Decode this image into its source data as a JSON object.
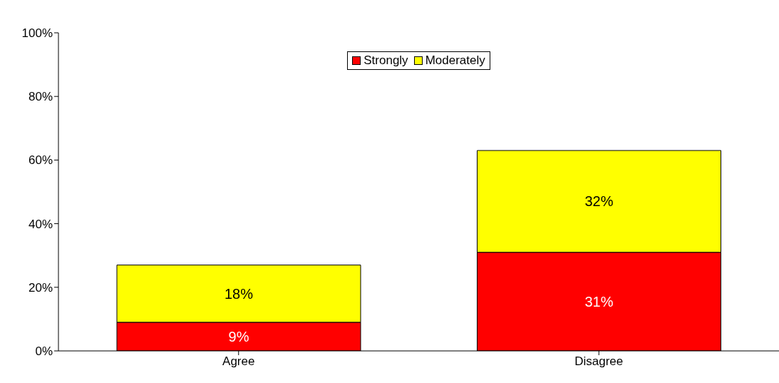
{
  "chart_data": {
    "type": "bar",
    "stacked": true,
    "categories": [
      "Agree",
      "Disagree"
    ],
    "series": [
      {
        "name": "Strongly",
        "color": "#ff0000",
        "values": [
          9,
          31
        ],
        "value_labels": [
          "9%",
          "31%"
        ]
      },
      {
        "name": "Moderately",
        "color": "#ffff00",
        "values": [
          18,
          32
        ],
        "value_labels": [
          "18%",
          "32%"
        ]
      }
    ],
    "ylim": [
      0,
      100
    ],
    "yticks": [
      {
        "value": 0,
        "label": "0%"
      },
      {
        "value": 20,
        "label": "20%"
      },
      {
        "value": 40,
        "label": "40%"
      },
      {
        "value": 60,
        "label": "60%"
      },
      {
        "value": 80,
        "label": "80%"
      },
      {
        "value": 100,
        "label": "100%"
      }
    ],
    "grid": false,
    "legend": "top"
  }
}
